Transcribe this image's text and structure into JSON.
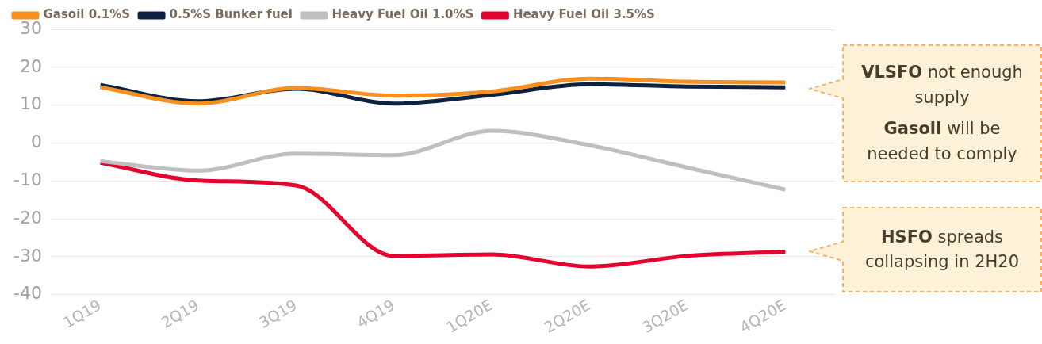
{
  "chart_data": {
    "type": "line",
    "categories": [
      "1Q19",
      "2Q19",
      "3Q19",
      "4Q19",
      "1Q20E",
      "2Q20E",
      "3Q20E",
      "4Q20E"
    ],
    "series": [
      {
        "name": "Gasoil 0.1%S",
        "color": "#f7901e",
        "values": [
          14.7,
          10.4,
          14.5,
          12.5,
          13.6,
          17,
          16.2,
          16
        ]
      },
      {
        "name": "0.5%S Bunker fuel",
        "color": "#0d2240",
        "values": [
          15.3,
          11,
          14.3,
          10.4,
          12.7,
          15.5,
          14.9,
          14.7
        ]
      },
      {
        "name": "Heavy Fuel Oil 1.0%S",
        "color": "#bfbfbf",
        "values": [
          -4.8,
          -7.3,
          -2.8,
          -3.2,
          3.2,
          -0.6,
          -6.5,
          -12.3
        ]
      },
      {
        "name": "Heavy Fuel Oil 3.5%S",
        "color": "#e4032e",
        "values": [
          -5.2,
          -9.9,
          -11.2,
          -29.8,
          -29.4,
          -32.6,
          -29.8,
          -28.7
        ]
      }
    ],
    "ylim": [
      -40,
      30
    ],
    "yticks": [
      -40,
      -30,
      -20,
      -10,
      0,
      10,
      20,
      30
    ],
    "grid": "y",
    "legend": "top left",
    "marker": "none",
    "line_style": "solid",
    "annotations": [
      "VLSFO not enough supply",
      "Gasoil will be needed to comply",
      "HSFO spreads collapsing in 2H20"
    ]
  }
}
